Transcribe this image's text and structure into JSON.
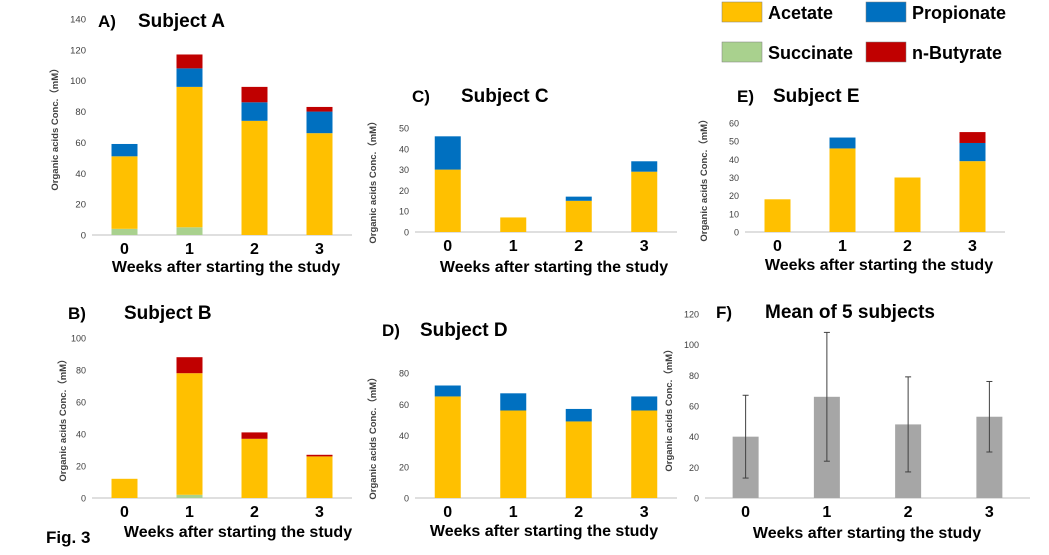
{
  "figure_label": "Fig. 3",
  "colors": {
    "Acetate": "#FFC000",
    "Propionate": "#0070C0",
    "Succinate": "#A9D18E",
    "n-Butyrate": "#C00000",
    "Mean": "#A6A6A6"
  },
  "legend": {
    "items": [
      {
        "name": "Acetate",
        "color": "#FFC000"
      },
      {
        "name": "Propionate",
        "color": "#0070C0"
      },
      {
        "name": "Succinate",
        "color": "#A9D18E"
      },
      {
        "name": "n-Butyrate",
        "color": "#C00000"
      }
    ]
  },
  "chart_data": [
    {
      "panel": "A)",
      "title": "Subject A",
      "type": "bar",
      "stacked": true,
      "categories": [
        "0",
        "1",
        "2",
        "3"
      ],
      "xlabel": "Weeks after starting the study",
      "ylabel": "Organic acids Conc.（mM）",
      "ylim": [
        0,
        140
      ],
      "yticks": [
        0,
        20,
        40,
        60,
        80,
        100,
        120,
        140
      ],
      "series": [
        {
          "name": "Succinate",
          "values": [
            4,
            5,
            0,
            0
          ]
        },
        {
          "name": "Acetate",
          "values": [
            47,
            91,
            74,
            66
          ]
        },
        {
          "name": "Propionate",
          "values": [
            8,
            12,
            12,
            14
          ]
        },
        {
          "name": "n-Butyrate",
          "values": [
            0,
            9,
            10,
            3
          ]
        }
      ]
    },
    {
      "panel": "B)",
      "title": "Subject B",
      "type": "bar",
      "stacked": true,
      "categories": [
        "0",
        "1",
        "2",
        "3"
      ],
      "xlabel": "Weeks after starting the study",
      "ylabel": "Organic acids Conc.（mM）",
      "ylim": [
        0,
        100
      ],
      "yticks": [
        0,
        20,
        40,
        60,
        80,
        100
      ],
      "series": [
        {
          "name": "Succinate",
          "values": [
            0,
            2,
            0,
            0
          ]
        },
        {
          "name": "Acetate",
          "values": [
            12,
            76,
            37,
            26
          ]
        },
        {
          "name": "Propionate",
          "values": [
            0,
            0,
            0,
            0
          ]
        },
        {
          "name": "n-Butyrate",
          "values": [
            0,
            10,
            4,
            1
          ]
        }
      ]
    },
    {
      "panel": "C)",
      "title": "Subject C",
      "type": "bar",
      "stacked": true,
      "categories": [
        "0",
        "1",
        "2",
        "3"
      ],
      "xlabel": "Weeks after starting the study",
      "ylabel": "Organic acids Conc.（mM）",
      "ylim": [
        0,
        50
      ],
      "yticks": [
        0,
        10,
        20,
        30,
        40,
        50
      ],
      "series": [
        {
          "name": "Succinate",
          "values": [
            0,
            0,
            0,
            0
          ]
        },
        {
          "name": "Acetate",
          "values": [
            30,
            7,
            15,
            29
          ]
        },
        {
          "name": "Propionate",
          "values": [
            16,
            0,
            2,
            5
          ]
        },
        {
          "name": "n-Butyrate",
          "values": [
            0,
            0,
            0,
            0
          ]
        }
      ]
    },
    {
      "panel": "D)",
      "title": "Subject D",
      "type": "bar",
      "stacked": true,
      "categories": [
        "0",
        "1",
        "2",
        "3"
      ],
      "xlabel": "Weeks after starting the study",
      "ylabel": "Organic acids Conc.（mM）",
      "ylim": [
        0,
        80
      ],
      "yticks": [
        0,
        20,
        40,
        60,
        80
      ],
      "series": [
        {
          "name": "Succinate",
          "values": [
            0,
            0,
            0,
            0
          ]
        },
        {
          "name": "Acetate",
          "values": [
            65,
            56,
            49,
            56
          ]
        },
        {
          "name": "Propionate",
          "values": [
            7,
            11,
            8,
            9
          ]
        },
        {
          "name": "n-Butyrate",
          "values": [
            0,
            0,
            0,
            0
          ]
        }
      ]
    },
    {
      "panel": "E)",
      "title": "Subject E",
      "type": "bar",
      "stacked": true,
      "categories": [
        "0",
        "1",
        "2",
        "3"
      ],
      "xlabel": "Weeks after starting the study",
      "ylabel": "Organic acids Conc.（mM）",
      "ylim": [
        0,
        60
      ],
      "yticks": [
        0,
        10,
        20,
        30,
        40,
        50,
        60
      ],
      "series": [
        {
          "name": "Succinate",
          "values": [
            0,
            0,
            0,
            0
          ]
        },
        {
          "name": "Acetate",
          "values": [
            18,
            46,
            30,
            39
          ]
        },
        {
          "name": "Propionate",
          "values": [
            0,
            6,
            0,
            10
          ]
        },
        {
          "name": "n-Butyrate",
          "values": [
            0,
            0,
            0,
            6
          ]
        }
      ]
    },
    {
      "panel": "F)",
      "title": "Mean of 5 subjects",
      "type": "bar",
      "stacked": false,
      "categories": [
        "0",
        "1",
        "2",
        "3"
      ],
      "xlabel": "Weeks after starting the study",
      "ylabel": "Organic acids Conc.（mM）",
      "ylim": [
        0,
        120
      ],
      "yticks": [
        0,
        20,
        40,
        60,
        80,
        100,
        120
      ],
      "series": [
        {
          "name": "Mean",
          "values": [
            40,
            66,
            48,
            53
          ],
          "error": [
            27,
            42,
            31,
            23
          ]
        }
      ]
    }
  ]
}
